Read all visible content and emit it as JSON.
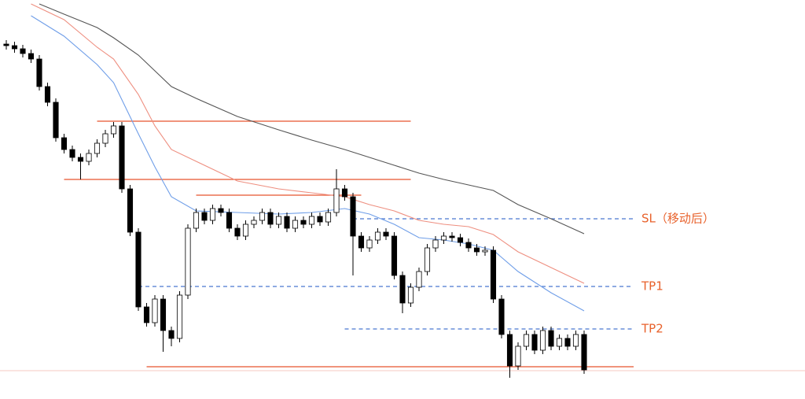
{
  "chart_data": {
    "type": "candlestick",
    "xlim": [
      0,
      96
    ],
    "ylim": [
      0,
      507
    ],
    "up_color": "#ffffff",
    "down_color": "#000000",
    "candles": {
      "open": [
        451,
        449,
        445,
        439,
        432,
        397,
        377,
        332,
        317,
        307,
        302,
        312,
        325,
        337,
        347,
        267,
        212,
        117,
        97,
        127,
        87,
        77,
        132,
        217,
        237,
        227,
        242,
        237,
        217,
        207,
        222,
        227,
        237,
        222,
        232,
        217,
        227,
        222,
        232,
        225,
        237,
        267,
        257,
        207,
        192,
        202,
        212,
        207,
        157,
        122,
        142,
        162,
        192,
        202,
        207,
        205,
        199,
        192,
        187,
        189,
        127,
        82,
        42,
        67,
        82,
        62,
        87,
        67,
        77,
        67,
        82
      ],
      "high": [
        456,
        454,
        450,
        444,
        437,
        402,
        382,
        337,
        322,
        312,
        317,
        330,
        342,
        352,
        352,
        272,
        217,
        122,
        132,
        132,
        92,
        137,
        222,
        242,
        242,
        247,
        247,
        242,
        222,
        227,
        232,
        242,
        242,
        237,
        237,
        232,
        232,
        237,
        237,
        242,
        292,
        272,
        262,
        212,
        207,
        217,
        217,
        212,
        162,
        147,
        167,
        197,
        207,
        212,
        212,
        210,
        204,
        197,
        194,
        194,
        132,
        87,
        72,
        87,
        87,
        92,
        92,
        82,
        82,
        87,
        87
      ],
      "low": [
        444,
        440,
        434,
        427,
        392,
        372,
        327,
        312,
        302,
        279,
        297,
        307,
        320,
        332,
        262,
        207,
        112,
        92,
        92,
        60,
        67,
        72,
        127,
        212,
        222,
        222,
        232,
        212,
        202,
        202,
        217,
        222,
        217,
        217,
        212,
        212,
        217,
        217,
        220,
        220,
        232,
        252,
        157,
        187,
        187,
        197,
        202,
        152,
        109,
        117,
        137,
        157,
        187,
        197,
        200,
        194,
        187,
        182,
        182,
        122,
        77,
        27,
        37,
        62,
        57,
        57,
        62,
        62,
        62,
        62,
        32
      ],
      "close": [
        449,
        445,
        439,
        432,
        397,
        377,
        332,
        317,
        307,
        302,
        312,
        325,
        337,
        347,
        267,
        212,
        117,
        97,
        127,
        87,
        77,
        132,
        217,
        237,
        227,
        242,
        237,
        217,
        207,
        222,
        227,
        237,
        222,
        232,
        217,
        227,
        222,
        232,
        225,
        237,
        267,
        257,
        207,
        192,
        202,
        212,
        207,
        157,
        122,
        142,
        162,
        192,
        202,
        207,
        205,
        199,
        192,
        187,
        189,
        127,
        82,
        42,
        67,
        82,
        62,
        87,
        67,
        77,
        67,
        82,
        37
      ]
    },
    "series": [
      {
        "color": "#6f9ee8",
        "x": [
          3,
          7,
          11,
          13,
          16,
          18,
          20,
          23,
          28,
          33,
          37,
          41,
          44,
          47,
          50,
          53,
          56,
          59,
          62,
          66,
          70
        ],
        "values": [
          487,
          461,
          425,
          402,
          337,
          295,
          257,
          239,
          237,
          235,
          237,
          242,
          235,
          222,
          205,
          202,
          197,
          189,
          162,
          135,
          112
        ]
      },
      {
        "color": "#ee8f80",
        "x": [
          3,
          7,
          11,
          13,
          16,
          18,
          20,
          23,
          28,
          33,
          37,
          41,
          44,
          47,
          50,
          53,
          56,
          59,
          62,
          66,
          70
        ],
        "values": [
          502,
          482,
          447,
          432,
          387,
          347,
          317,
          302,
          277,
          267,
          262,
          257,
          247,
          239,
          227,
          222,
          219,
          209,
          187,
          167,
          147
        ]
      },
      {
        "color": "#555555",
        "x": [
          4,
          7,
          11,
          13,
          16,
          18,
          20,
          23,
          28,
          33,
          37,
          41,
          44,
          47,
          50,
          53,
          56,
          59,
          62,
          66,
          70
        ],
        "values": [
          502,
          489,
          472,
          459,
          437,
          417,
          397,
          382,
          359,
          342,
          329,
          317,
          307,
          297,
          287,
          279,
          272,
          265,
          247,
          229,
          210
        ]
      }
    ],
    "levels": [
      {
        "value": 353,
        "x": [
          11,
          49
        ],
        "color": "#e8552e",
        "style": "solid"
      },
      {
        "value": 279,
        "x": [
          7,
          49
        ],
        "color": "#e8552e",
        "style": "solid"
      },
      {
        "value": 259,
        "x": [
          23,
          43
        ],
        "color": "#e8552e",
        "style": "solid"
      },
      {
        "value": 41,
        "x": [
          17,
          76
        ],
        "color": "#e8552e",
        "style": "solid"
      },
      {
        "value": 229,
        "x": [
          42,
          76
        ],
        "color": "#4a78d0",
        "style": "dashed",
        "label": "SL（移动后）"
      },
      {
        "value": 143,
        "x": [
          16,
          76
        ],
        "color": "#4a78d0",
        "style": "dashed",
        "label": "TP1"
      },
      {
        "value": 89,
        "x": [
          41,
          76
        ],
        "color": "#4a78d0",
        "style": "dashed",
        "label": "TP2"
      }
    ],
    "label_color": "#e8622c"
  }
}
